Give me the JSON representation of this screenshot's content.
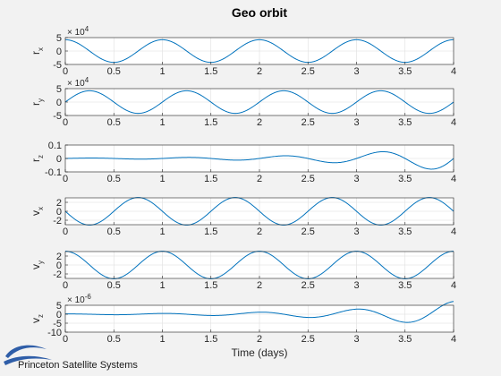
{
  "figure": {
    "title": "Geo orbit",
    "xlabel": "Time (days)",
    "branding": "Princeton Satellite Systems",
    "line_color": "#0072bd",
    "logo_color": "#2f5ea8"
  },
  "chart_data": [
    {
      "type": "line",
      "id": "rx",
      "ylabel_main": "r",
      "ylabel_sub": "x",
      "exponent": "4",
      "xlim": [
        0,
        4
      ],
      "ylim": [
        -5,
        5
      ],
      "yticks": [
        -5,
        0,
        5
      ],
      "ytick_labels": [
        "-5",
        "0",
        "5"
      ],
      "xticks": [
        0,
        0.5,
        1,
        1.5,
        2,
        2.5,
        3,
        3.5,
        4
      ],
      "xtick_labels": [
        "0",
        "0.5",
        "1",
        "1.5",
        "2",
        "2.5",
        "3",
        "3.5",
        "4"
      ],
      "grid": true,
      "series": [
        {
          "function": "cosine",
          "amplitude": 4.2,
          "period_days": 1,
          "phase_days": 0,
          "growth": 0
        }
      ]
    },
    {
      "type": "line",
      "id": "ry",
      "ylabel_main": "r",
      "ylabel_sub": "y",
      "exponent": "4",
      "xlim": [
        0,
        4
      ],
      "ylim": [
        -5,
        5
      ],
      "yticks": [
        -5,
        0,
        5
      ],
      "ytick_labels": [
        "-5",
        "0",
        "5"
      ],
      "xticks": [
        0,
        0.5,
        1,
        1.5,
        2,
        2.5,
        3,
        3.5,
        4
      ],
      "xtick_labels": [
        "0",
        "0.5",
        "1",
        "1.5",
        "2",
        "2.5",
        "3",
        "3.5",
        "4"
      ],
      "grid": true,
      "series": [
        {
          "function": "sine",
          "amplitude": 4.2,
          "period_days": 1,
          "phase_days": 0,
          "growth": 0
        }
      ]
    },
    {
      "type": "line",
      "id": "rz",
      "ylabel_main": "r",
      "ylabel_sub": "z",
      "exponent": "",
      "xlim": [
        0,
        4
      ],
      "ylim": [
        -0.1,
        0.1
      ],
      "yticks": [
        -0.1,
        0,
        0.1
      ],
      "ytick_labels": [
        "-0.1",
        "0",
        "0.1"
      ],
      "xticks": [
        0,
        0.5,
        1,
        1.5,
        2,
        2.5,
        3,
        3.5,
        4
      ],
      "xtick_labels": [
        "0",
        "0.5",
        "1",
        "1.5",
        "2",
        "2.5",
        "3",
        "3.5",
        "4"
      ],
      "grid": true,
      "series": [
        {
          "function": "sine",
          "amplitude": 0.0025,
          "period_days": 1,
          "phase_days": 0,
          "growth": 0.92
        }
      ]
    },
    {
      "type": "line",
      "id": "vx",
      "ylabel_main": "v",
      "ylabel_sub": "x",
      "exponent": "",
      "xlim": [
        0,
        4
      ],
      "ylim": [
        -3,
        3
      ],
      "yticks": [
        -2,
        0,
        2
      ],
      "ytick_labels": [
        "-2",
        "0",
        "2"
      ],
      "xticks": [
        0,
        0.5,
        1,
        1.5,
        2,
        2.5,
        3,
        3.5,
        4
      ],
      "xtick_labels": [
        "0",
        "0.5",
        "1",
        "1.5",
        "2",
        "2.5",
        "3",
        "3.5",
        "4"
      ],
      "grid": true,
      "series": [
        {
          "function": "negsine",
          "amplitude": 3.07,
          "period_days": 1,
          "phase_days": 0,
          "growth": 0
        }
      ]
    },
    {
      "type": "line",
      "id": "vy",
      "ylabel_main": "v",
      "ylabel_sub": "y",
      "exponent": "",
      "xlim": [
        0,
        4
      ],
      "ylim": [
        -3,
        3
      ],
      "yticks": [
        -2,
        0,
        2
      ],
      "ytick_labels": [
        "-2",
        "0",
        "2"
      ],
      "xticks": [
        0,
        0.5,
        1,
        1.5,
        2,
        2.5,
        3,
        3.5,
        4
      ],
      "xtick_labels": [
        "0",
        "0.5",
        "1",
        "1.5",
        "2",
        "2.5",
        "3",
        "3.5",
        "4"
      ],
      "grid": true,
      "series": [
        {
          "function": "cosine",
          "amplitude": 3.07,
          "period_days": 1,
          "phase_days": 0,
          "growth": 0
        }
      ]
    },
    {
      "type": "line",
      "id": "vz",
      "ylabel_main": "v",
      "ylabel_sub": "z",
      "exponent": "-6",
      "xlim": [
        0,
        4
      ],
      "ylim": [
        -10,
        5
      ],
      "yticks": [
        -10,
        -5,
        0,
        5
      ],
      "ytick_labels": [
        "-10",
        "-5",
        "0",
        "5"
      ],
      "xticks": [
        0,
        0.5,
        1,
        1.5,
        2,
        2.5,
        3,
        3.5,
        4
      ],
      "xtick_labels": [
        "0",
        "0.5",
        "1",
        "1.5",
        "2",
        "2.5",
        "3",
        "3.5",
        "4"
      ],
      "grid": true,
      "series": [
        {
          "function": "cosine",
          "amplitude": 0.18,
          "period_days": 1,
          "phase_days": 0,
          "growth": 0.92
        }
      ]
    }
  ]
}
